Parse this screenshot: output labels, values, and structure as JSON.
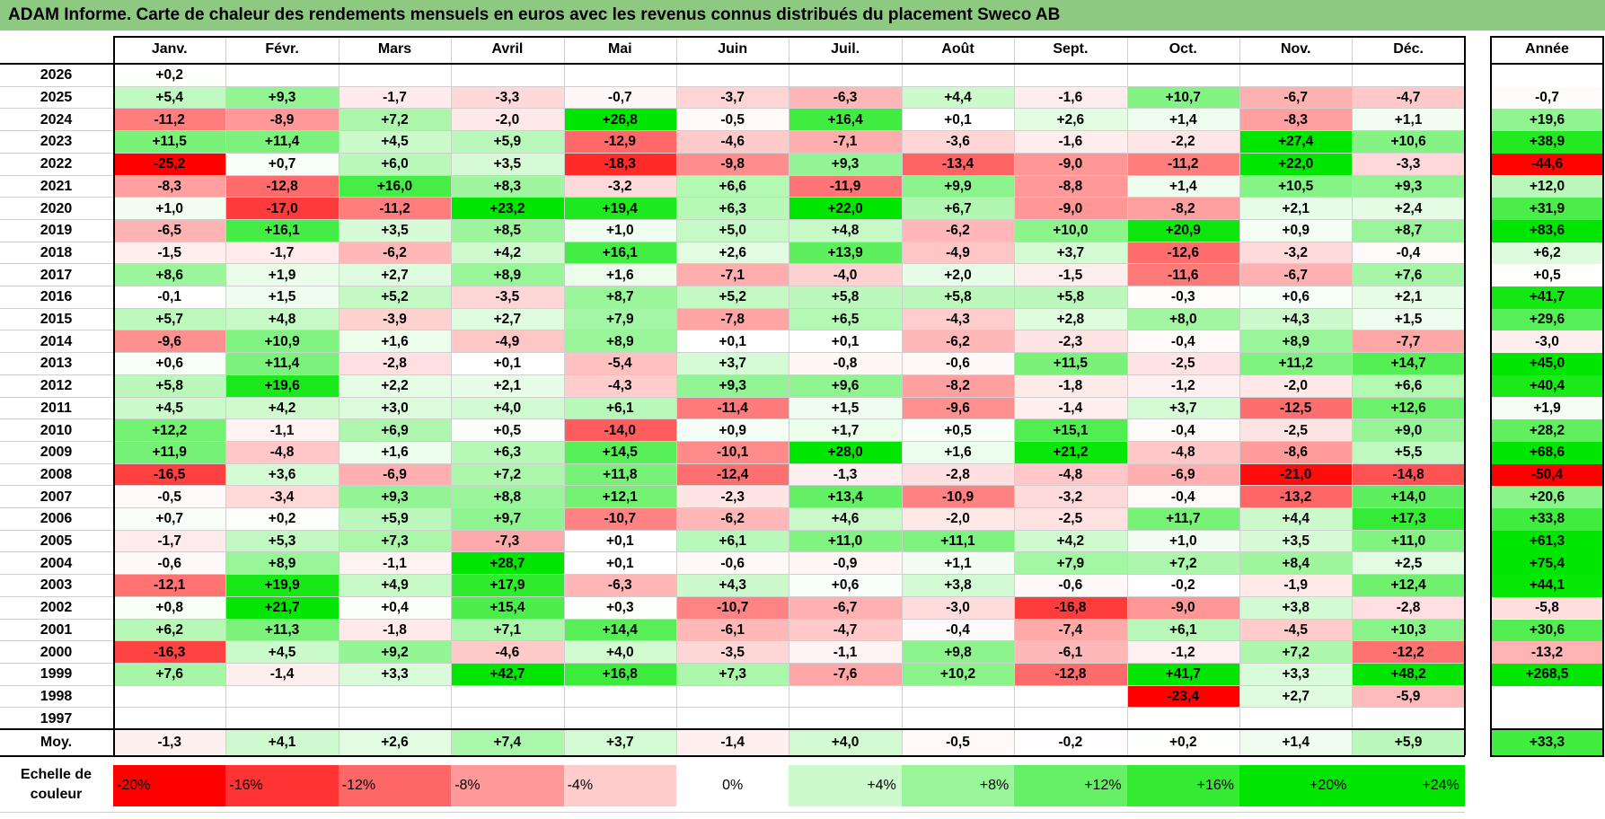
{
  "title": "ADAM Informe. Carte de chaleur des rendements mensuels en euros avec les revenus connus distribués du placement Sweco AB",
  "colors": {
    "title_bg": "#8ec981",
    "negative": "#ff0000",
    "positive": "#00e600",
    "neutral": "#ffffff"
  },
  "chart_data": {
    "type": "heatmap",
    "title": "ADAM Informe. Carte de chaleur des rendements mensuels en euros avec les revenus connus distribués du placement Sweco AB",
    "columns": [
      "Janv.",
      "Févr.",
      "Mars",
      "Avril",
      "Mai",
      "Juin",
      "Juil.",
      "Août",
      "Sept.",
      "Oct.",
      "Nov.",
      "Déc."
    ],
    "annual_header": "Année",
    "rows": [
      {
        "year": "2026",
        "values": [
          "+0,2",
          "",
          "",
          "",
          "",
          "",
          "",
          "",
          "",
          "",
          "",
          ""
        ],
        "annual": ""
      },
      {
        "year": "2025",
        "values": [
          "+5,4",
          "+9,3",
          "-1,7",
          "-3,3",
          "-0,7",
          "-3,7",
          "-6,3",
          "+4,4",
          "-1,6",
          "+10,7",
          "-6,7",
          "-4,7"
        ],
        "annual": "-0,7"
      },
      {
        "year": "2024",
        "values": [
          "-11,2",
          "-8,9",
          "+7,2",
          "-2,0",
          "+26,8",
          "-0,5",
          "+16,4",
          "+0,1",
          "+2,6",
          "+1,4",
          "-8,3",
          "+1,1"
        ],
        "annual": "+19,6"
      },
      {
        "year": "2023",
        "values": [
          "+11,5",
          "+11,4",
          "+4,5",
          "+5,9",
          "-12,9",
          "-4,6",
          "-7,1",
          "-3,6",
          "-1,6",
          "-2,2",
          "+27,4",
          "+10,6"
        ],
        "annual": "+38,9"
      },
      {
        "year": "2022",
        "values": [
          "-25,2",
          "+0,7",
          "+6,0",
          "+3,5",
          "-18,3",
          "-9,8",
          "+9,3",
          "-13,4",
          "-9,0",
          "-11,2",
          "+22,0",
          "-3,3"
        ],
        "annual": "-44,6"
      },
      {
        "year": "2021",
        "values": [
          "-8,3",
          "-12,8",
          "+16,0",
          "+8,3",
          "-3,2",
          "+6,6",
          "-11,9",
          "+9,9",
          "-8,8",
          "+1,4",
          "+10,5",
          "+9,3"
        ],
        "annual": "+12,0"
      },
      {
        "year": "2020",
        "values": [
          "+1,0",
          "-17,0",
          "-11,2",
          "+23,2",
          "+19,4",
          "+6,3",
          "+22,0",
          "+6,7",
          "-9,0",
          "-8,2",
          "+2,1",
          "+2,4"
        ],
        "annual": "+31,9"
      },
      {
        "year": "2019",
        "values": [
          "-6,5",
          "+16,1",
          "+3,5",
          "+8,5",
          "+1,0",
          "+5,0",
          "+4,8",
          "-6,2",
          "+10,0",
          "+20,9",
          "+0,9",
          "+8,7"
        ],
        "annual": "+83,6"
      },
      {
        "year": "2018",
        "values": [
          "-1,5",
          "-1,7",
          "-6,2",
          "+4,2",
          "+16,1",
          "+2,6",
          "+13,9",
          "-4,9",
          "+3,7",
          "-12,6",
          "-3,2",
          "-0,4"
        ],
        "annual": "+6,2"
      },
      {
        "year": "2017",
        "values": [
          "+8,6",
          "+1,9",
          "+2,7",
          "+8,9",
          "+1,6",
          "-7,1",
          "-4,0",
          "+2,0",
          "-1,5",
          "-11,6",
          "-6,7",
          "+7,6"
        ],
        "annual": "+0,5"
      },
      {
        "year": "2016",
        "values": [
          "-0,1",
          "+1,5",
          "+5,2",
          "-3,5",
          "+8,7",
          "+5,2",
          "+5,8",
          "+5,8",
          "+5,8",
          "-0,3",
          "+0,6",
          "+2,1"
        ],
        "annual": "+41,7"
      },
      {
        "year": "2015",
        "values": [
          "+5,7",
          "+4,8",
          "-3,9",
          "+2,7",
          "+7,9",
          "-7,8",
          "+6,5",
          "-4,3",
          "+2,8",
          "+8,0",
          "+4,3",
          "+1,5"
        ],
        "annual": "+29,6"
      },
      {
        "year": "2014",
        "values": [
          "-9,6",
          "+10,9",
          "+1,6",
          "-4,9",
          "+8,9",
          "+0,1",
          "+0,1",
          "-6,2",
          "-2,3",
          "-0,4",
          "+8,9",
          "-7,7"
        ],
        "annual": "-3,0"
      },
      {
        "year": "2013",
        "values": [
          "+0,6",
          "+11,4",
          "-2,8",
          "+0,1",
          "-5,4",
          "+3,7",
          "-0,8",
          "-0,6",
          "+11,5",
          "-2,5",
          "+11,2",
          "+14,7"
        ],
        "annual": "+45,0"
      },
      {
        "year": "2012",
        "values": [
          "+5,8",
          "+19,6",
          "+2,2",
          "+2,1",
          "-4,3",
          "+9,3",
          "+9,6",
          "-8,2",
          "-1,8",
          "-1,2",
          "-2,0",
          "+6,6"
        ],
        "annual": "+40,4"
      },
      {
        "year": "2011",
        "values": [
          "+4,5",
          "+4,2",
          "+3,0",
          "+4,0",
          "+6,1",
          "-11,4",
          "+1,5",
          "-9,6",
          "-1,4",
          "+3,7",
          "-12,5",
          "+12,6"
        ],
        "annual": "+1,9"
      },
      {
        "year": "2010",
        "values": [
          "+12,2",
          "-1,1",
          "+6,9",
          "+0,5",
          "-14,0",
          "+0,9",
          "+1,7",
          "+0,5",
          "+15,1",
          "-0,4",
          "-2,5",
          "+9,0"
        ],
        "annual": "+28,2"
      },
      {
        "year": "2009",
        "values": [
          "+11,9",
          "-4,8",
          "+1,6",
          "+6,3",
          "+14,5",
          "-10,1",
          "+28,0",
          "+1,6",
          "+21,2",
          "-4,8",
          "-8,6",
          "+5,5"
        ],
        "annual": "+68,6"
      },
      {
        "year": "2008",
        "values": [
          "-16,5",
          "+3,6",
          "-6,9",
          "+7,2",
          "+11,8",
          "-12,4",
          "-1,3",
          "-2,8",
          "-4,8",
          "-6,9",
          "-21,0",
          "-14,8"
        ],
        "annual": "-50,4"
      },
      {
        "year": "2007",
        "values": [
          "-0,5",
          "-3,4",
          "+9,3",
          "+8,8",
          "+12,1",
          "-2,3",
          "+13,4",
          "-10,9",
          "-3,2",
          "-0,4",
          "-13,2",
          "+14,0"
        ],
        "annual": "+20,6"
      },
      {
        "year": "2006",
        "values": [
          "+0,7",
          "+0,2",
          "+5,9",
          "+9,7",
          "-10,7",
          "-6,2",
          "+4,6",
          "-2,0",
          "-2,5",
          "+11,7",
          "+4,4",
          "+17,3"
        ],
        "annual": "+33,8"
      },
      {
        "year": "2005",
        "values": [
          "-1,7",
          "+5,3",
          "+7,3",
          "-7,3",
          "+0,1",
          "+6,1",
          "+11,0",
          "+11,1",
          "+4,2",
          "+1,0",
          "+3,5",
          "+11,0"
        ],
        "annual": "+61,3"
      },
      {
        "year": "2004",
        "values": [
          "-0,6",
          "+8,9",
          "-1,1",
          "+28,7",
          "+0,1",
          "-0,6",
          "-0,9",
          "+1,1",
          "+7,9",
          "+7,2",
          "+8,4",
          "+2,5"
        ],
        "annual": "+75,4"
      },
      {
        "year": "2003",
        "values": [
          "-12,1",
          "+19,9",
          "+4,9",
          "+17,9",
          "-6,3",
          "+4,3",
          "+0,6",
          "+3,8",
          "-0,6",
          "-0,2",
          "-1,9",
          "+12,4"
        ],
        "annual": "+44,1"
      },
      {
        "year": "2002",
        "values": [
          "+0,8",
          "+21,7",
          "+0,4",
          "+15,4",
          "+0,3",
          "-10,7",
          "-6,7",
          "-3,0",
          "-16,8",
          "-9,0",
          "+3,8",
          "-2,8"
        ],
        "annual": "-5,8"
      },
      {
        "year": "2001",
        "values": [
          "+6,2",
          "+11,3",
          "-1,8",
          "+7,1",
          "+14,4",
          "-6,1",
          "-4,7",
          "-0,4",
          "-7,4",
          "+6,1",
          "-4,5",
          "+10,3"
        ],
        "annual": "+30,6"
      },
      {
        "year": "2000",
        "values": [
          "-16,3",
          "+4,5",
          "+9,2",
          "-4,6",
          "+4,0",
          "-3,5",
          "-1,1",
          "+9,8",
          "-6,1",
          "-1,2",
          "+7,2",
          "-12,2"
        ],
        "annual": "-13,2"
      },
      {
        "year": "1999",
        "values": [
          "+7,6",
          "-1,4",
          "+3,3",
          "+42,7",
          "+16,8",
          "+7,3",
          "-7,6",
          "+10,2",
          "-12,8",
          "+41,7",
          "+3,3",
          "+48,2"
        ],
        "annual": "+268,5"
      },
      {
        "year": "1998",
        "values": [
          "",
          "",
          "",
          "",
          "",
          "",
          "",
          "",
          "",
          "-23,4",
          "+2,7",
          "-5,9"
        ],
        "annual": ""
      },
      {
        "year": "1997",
        "values": [
          "",
          "",
          "",
          "",
          "",
          "",
          "",
          "",
          "",
          "",
          "",
          ""
        ],
        "annual": ""
      }
    ],
    "average": {
      "label": "Moy.",
      "values": [
        "-1,3",
        "+4,1",
        "+2,6",
        "+7,4",
        "+3,7",
        "-1,4",
        "+4,0",
        "-0,5",
        "-0,2",
        "+0,2",
        "+1,4",
        "+5,9"
      ],
      "annual": "+33,3"
    },
    "legend": {
      "title_line1": "Echelle de",
      "title_line2": "couleur",
      "items": [
        "-20%",
        "-16%",
        "-12%",
        "-8%",
        "-4%",
        "0%",
        "+4%",
        "+8%",
        "+12%",
        "+16%",
        "+20%",
        "+24%"
      ],
      "values": [
        -20,
        -16,
        -12,
        -8,
        -4,
        0,
        4,
        8,
        12,
        16,
        20,
        24
      ]
    }
  }
}
